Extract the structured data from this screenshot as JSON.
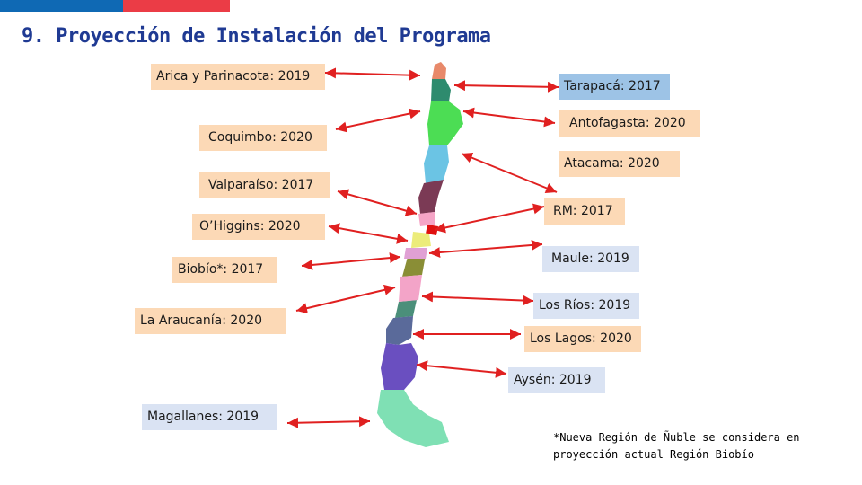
{
  "title": "9. Proyección de Instalación del Programa",
  "regions": [
    {
      "id": "arica",
      "label": "Arica y Parinacota: 2019"
    },
    {
      "id": "tarapaca",
      "label": "Tarapacá: 2017"
    },
    {
      "id": "antofagasta",
      "label": "Antofagasta: 2020"
    },
    {
      "id": "atacama",
      "label": "Atacama: 2020"
    },
    {
      "id": "coquimbo",
      "label": "Coquimbo: 2020"
    },
    {
      "id": "valparaiso",
      "label": "Valparaíso: 2017"
    },
    {
      "id": "rm",
      "label": "RM: 2017"
    },
    {
      "id": "ohiggins",
      "label": "O’Higgins: 2020"
    },
    {
      "id": "maule",
      "label": "Maule: 2019"
    },
    {
      "id": "biobio",
      "label": "Biobío*: 2017"
    },
    {
      "id": "losrios",
      "label": "Los Ríos: 2019"
    },
    {
      "id": "araucania",
      "label": "La Araucanía: 2020"
    },
    {
      "id": "loslagos",
      "label": "Los Lagos: 2020"
    },
    {
      "id": "aysen",
      "label": "Aysén: 2019"
    },
    {
      "id": "magallanes",
      "label": "Magallanes: 2019"
    }
  ],
  "footnote": {
    "line1": "*Nueva Región de Ñuble se considera en",
    "line2": "proyección actual Región Biobío"
  },
  "colors": {
    "brand_blue": "#0f69b4",
    "brand_red": "#eb3c46",
    "title": "#1f3a93",
    "arrow": "#e02020",
    "label_peach": "#fcd9b6",
    "label_blue": "#9dc3e6",
    "label_gray": "#dae3f3"
  }
}
